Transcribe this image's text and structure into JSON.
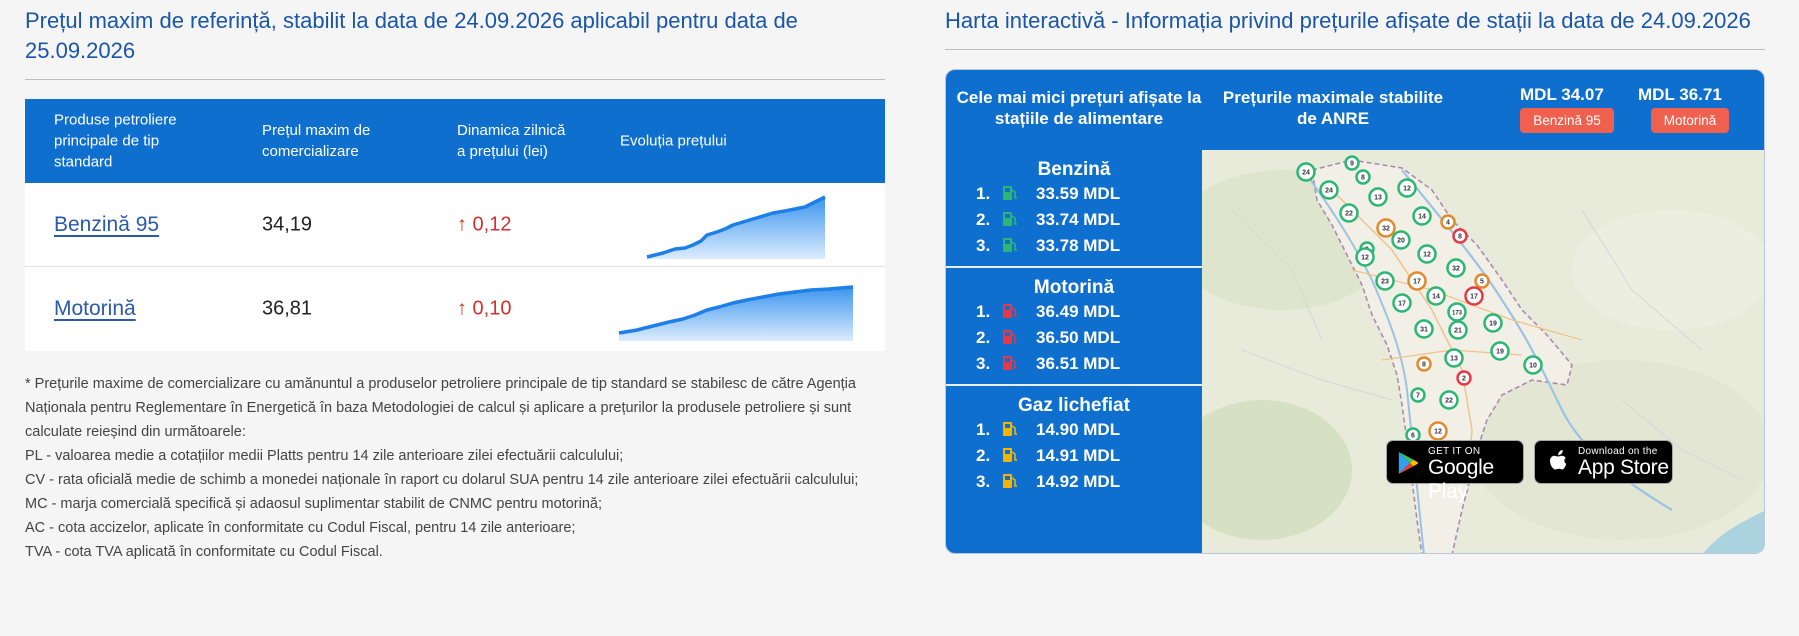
{
  "left": {
    "title": "Prețul maxim de referință, stabilit la data de 24.09.2026 aplicabil pentru data de 25.09.2026",
    "table": {
      "headers": [
        "Produse petroliere principale de tip standard",
        "Prețul maxim de comercializare",
        "Dinamica zilnică a prețului (lei)",
        "Evoluția prețului"
      ],
      "rows": [
        {
          "name": "Benzină 95",
          "price": "34,19",
          "change": "↑ 0,12"
        },
        {
          "name": "Motorină",
          "price": "36,81",
          "change": "↑ 0,10"
        }
      ]
    },
    "notes": [
      "* Prețurile maxime de comercializare cu amănuntul a produselor petroliere principale de tip standard se stabilesc de către Agenția Naționala pentru Reglementare în Energetică în baza Metodologiei de calcul și aplicare a prețurilor la produsele petroliere și sunt calculate reieșind din următoarele:",
      "PL - valoarea medie a cotațiilor medii Platts pentru 14 zile anterioare zilei efectuării calculului;",
      "CV - rata oficială medie de schimb a monedei naționale în raport cu dolarul SUA pentru 14 zile anterioare zilei efectuării calculului;",
      "MC - marja comercială specifică și adaosul suplimentar stabilit de CNMC pentru motorină;",
      "AC - cota accizelor, aplicate în conformitate cu Codul Fiscal, pentru 14 zile anterioare;",
      "TVA - cota TVA aplicată în conformitate cu Codul Fiscal."
    ]
  },
  "right": {
    "title": "Harta interactivă - Informația privind prețurile afișate de stații la data de 24.09.2026",
    "header": {
      "lowest_label": "Cele mai mici prețuri afișate la stațiile de alimentare",
      "max_label": "Prețurile maximale stabilite de ANRE",
      "benzina_value": "MDL 34.07",
      "benzina_badge": "Benzină 95",
      "motorina_value": "MDL 36.71",
      "motorina_badge": "Motorină"
    },
    "groups": [
      {
        "title": "Benzină",
        "items": [
          {
            "rank": "1.",
            "price": "33.59 MDL"
          },
          {
            "rank": "2.",
            "price": "33.74 MDL"
          },
          {
            "rank": "3.",
            "price": "33.78 MDL"
          }
        ]
      },
      {
        "title": "Motorină",
        "items": [
          {
            "rank": "1.",
            "price": "36.49 MDL"
          },
          {
            "rank": "2.",
            "price": "36.50 MDL"
          },
          {
            "rank": "3.",
            "price": "36.51 MDL"
          }
        ]
      },
      {
        "title": "Gaz lichefiat",
        "items": [
          {
            "rank": "1.",
            "price": "14.90 MDL"
          },
          {
            "rank": "2.",
            "price": "14.91 MDL"
          },
          {
            "rank": "3.",
            "price": "14.92 MDL"
          }
        ]
      }
    ],
    "icons": [
      "fuel-pump-icon-green",
      "fuel-pump-icon-red",
      "fuel-pump-icon-yellow"
    ],
    "colors": {
      "green": "#2bb673",
      "red": "#e53945",
      "yellow": "#f2b600",
      "accent": "#0f6fce"
    },
    "markers": [
      "24",
      "9",
      "8",
      "24",
      "13",
      "12",
      "22",
      "32",
      "14",
      "4",
      "8",
      "20",
      "6",
      "12",
      "12",
      "32",
      "23",
      "17",
      "5",
      "17",
      "14",
      "17",
      "173",
      "19",
      "31",
      "21",
      "19",
      "13",
      "10",
      "8",
      "2",
      "7",
      "22",
      "12",
      "6"
    ],
    "stores": {
      "google_small": "GET IT ON",
      "google_big": "Google Play",
      "apple_small": "Download on the",
      "apple_big": "App Store"
    }
  }
}
